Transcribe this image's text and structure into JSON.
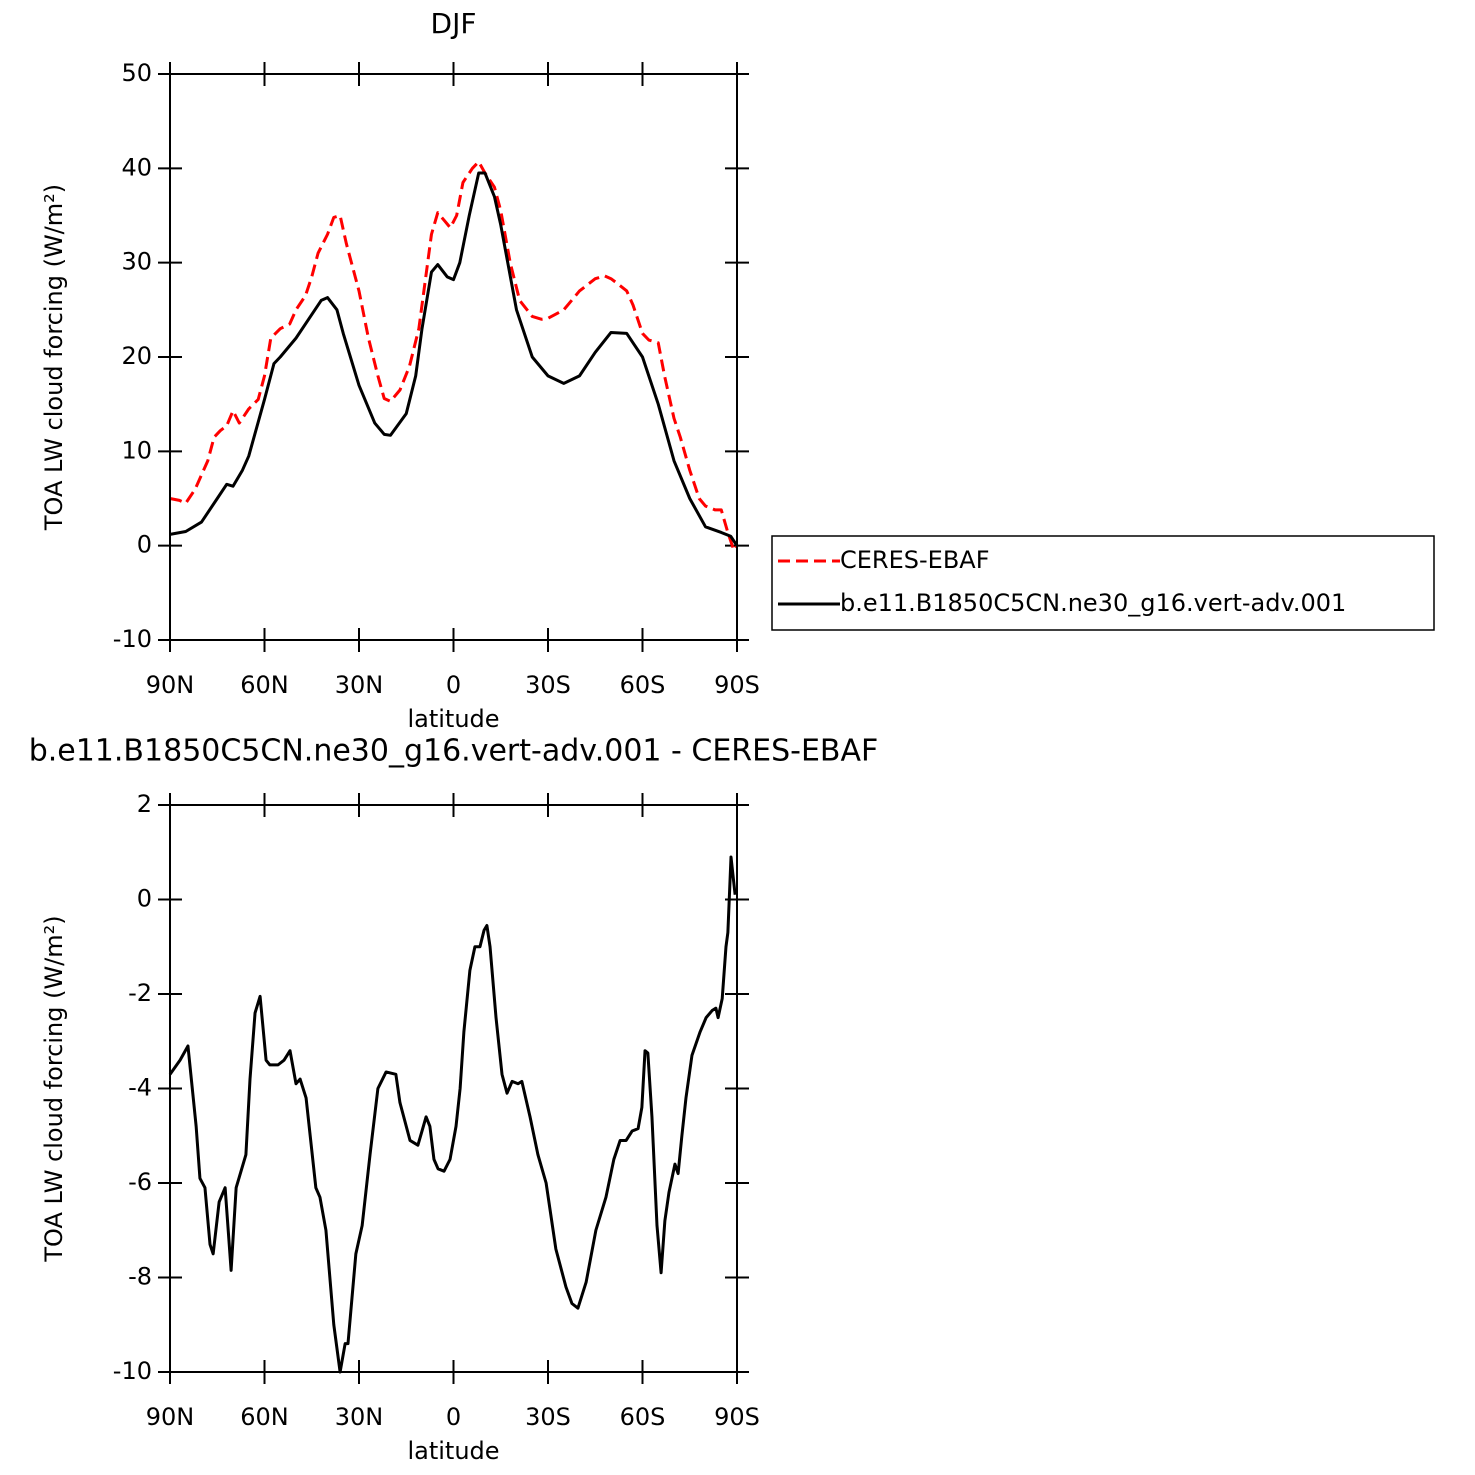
{
  "chart_data": [
    {
      "type": "line",
      "title": "DJF",
      "xlabel": "latitude",
      "ylabel": "TOA LW cloud forcing (W/m²)",
      "xlim": [
        90,
        -90
      ],
      "ylim": [
        -10,
        50
      ],
      "xticks": [
        {
          "value": 90,
          "label": "90N"
        },
        {
          "value": 60,
          "label": "60N"
        },
        {
          "value": 30,
          "label": "30N"
        },
        0,
        {
          "value": -30,
          "label": "30S"
        },
        {
          "value": -60,
          "label": "60S"
        },
        {
          "value": -90,
          "label": "90S"
        }
      ],
      "yticks": [
        -10,
        0,
        10,
        20,
        30,
        40,
        50
      ],
      "legend": "right",
      "series": [
        {
          "name": "CERES-EBAF",
          "color": "#ff0000",
          "line_style": "dashed",
          "x": [
            90,
            87,
            85,
            82,
            80,
            78,
            76,
            74,
            72,
            70,
            68,
            65,
            62,
            60,
            58,
            55,
            52,
            50,
            47,
            45,
            43,
            40,
            38,
            36,
            34,
            30,
            27,
            24,
            22,
            20,
            17,
            14,
            11,
            9,
            7,
            5,
            3,
            1,
            -1,
            -3,
            -6,
            -8,
            -10,
            -13,
            -15,
            -18,
            -21,
            -25,
            -28,
            -30,
            -35,
            -40,
            -45,
            -48,
            -50,
            -52,
            -55,
            -57,
            -60,
            -62,
            -65,
            -67,
            -70,
            -72,
            -75,
            -78,
            -80,
            -83,
            -85,
            -87,
            -88,
            -89,
            -90
          ],
          "values": [
            5,
            4.8,
            4.5,
            6,
            7.5,
            9,
            11.5,
            12.2,
            12.7,
            14.3,
            13,
            14.5,
            15.5,
            18,
            22,
            23,
            23.5,
            25,
            26.5,
            28.5,
            31,
            33,
            34.8,
            35,
            32,
            27,
            22,
            18,
            15.6,
            15.3,
            16.5,
            19,
            23,
            28,
            33,
            35.3,
            34.5,
            33.7,
            35,
            38.5,
            40,
            40.7,
            39.5,
            38,
            35.5,
            30,
            26,
            24.3,
            24,
            24.1,
            25,
            27,
            28.3,
            28.6,
            28.3,
            27.8,
            27,
            25.5,
            22.5,
            21.8,
            21.5,
            18,
            13.5,
            11.5,
            8,
            5,
            4.2,
            3.8,
            3.8,
            1.5,
            0.5,
            -0.5,
            0
          ]
        },
        {
          "name": "b.e11.B1850C5CN.ne30_g16.vert-adv.001",
          "color": "#000000",
          "line_style": "solid",
          "x": [
            90,
            85,
            80,
            75,
            72,
            70,
            67,
            65,
            60,
            57,
            55,
            50,
            45,
            42,
            40,
            37,
            35,
            30,
            25,
            22,
            20,
            15,
            12,
            10,
            7,
            5,
            2,
            0,
            -2,
            -5,
            -8,
            -10,
            -13,
            -15,
            -20,
            -25,
            -30,
            -35,
            -40,
            -45,
            -50,
            -55,
            -60,
            -65,
            -70,
            -75,
            -80,
            -85,
            -88,
            -90
          ],
          "values": [
            1.2,
            1.5,
            2.5,
            5,
            6.5,
            6.3,
            8,
            9.5,
            15.5,
            19.3,
            20,
            22,
            24.5,
            26,
            26.3,
            25,
            22.5,
            17,
            13,
            11.8,
            11.7,
            14,
            18,
            23,
            29,
            29.8,
            28.5,
            28.2,
            30,
            35,
            39.5,
            39.5,
            37,
            34,
            25,
            20,
            18,
            17.2,
            18,
            20.5,
            22.6,
            22.5,
            20,
            15,
            9,
            5,
            2,
            1.4,
            1,
            0
          ]
        }
      ]
    },
    {
      "type": "line",
      "title": "b.e11.B1850C5CN.ne30_g16.vert-adv.001 - CERES-EBAF",
      "xlabel": "latitude",
      "ylabel": "TOA LW cloud forcing (W/m²)",
      "xlim": [
        90,
        -90
      ],
      "ylim": [
        -10,
        2
      ],
      "xticks": [
        {
          "value": 90,
          "label": "90N"
        },
        {
          "value": 60,
          "label": "60N"
        },
        {
          "value": 30,
          "label": "30N"
        },
        0,
        {
          "value": -30,
          "label": "30S"
        },
        {
          "value": -60,
          "label": "60S"
        },
        {
          "value": -90,
          "label": "90S"
        }
      ],
      "yticks": [
        -10,
        -8,
        -6,
        -4,
        -2,
        0,
        2
      ],
      "series": [
        {
          "color": "#000000",
          "line_style": "solid",
          "x": [
            90,
            86.8,
            84.3,
            81.7,
            80.5,
            78.9,
            77.3,
            76.3,
            74.4,
            72.5,
            70.6,
            69,
            65.9,
            64.6,
            63,
            61.4,
            59.5,
            58.3,
            55.7,
            53.8,
            51.9,
            50,
            48.7,
            46.8,
            43.7,
            42.4,
            40.5,
            38,
            36,
            34.4,
            33.5,
            31,
            29,
            26.5,
            24,
            21.4,
            18.3,
            17,
            13.8,
            11.3,
            10,
            8.7,
            7.5,
            6.2,
            4.9,
            3,
            1.1,
            -0.8,
            -2.1,
            -3.3,
            -5.2,
            -6.8,
            -8.4,
            -9.7,
            -10.6,
            -11.6,
            -13.5,
            -15.4,
            -17,
            -18.6,
            -20.5,
            -21.7,
            -24.3,
            -26.8,
            -29.4,
            -32.5,
            -35.7,
            -37.6,
            -39.5,
            -42.1,
            -45.2,
            -48.4,
            -50.9,
            -52.9,
            -54.8,
            -56.7,
            -58.6,
            -59.8,
            -60.8,
            -61.7,
            -63,
            -64.6,
            -65.9,
            -67.1,
            -68.4,
            -70.3,
            -71.3,
            -72.5,
            -73.8,
            -75.7,
            -78.3,
            -80.2,
            -82.1,
            -83.3,
            -84,
            -85.3,
            -86.5,
            -87.1,
            -88.1,
            -89.4
          ],
          "values": [
            -3.7,
            -3.4,
            -3.1,
            -4.8,
            -5.9,
            -6.1,
            -7.3,
            -7.5,
            -6.4,
            -6.1,
            -7.85,
            -6.1,
            -5.4,
            -3.8,
            -2.4,
            -2.05,
            -3.4,
            -3.5,
            -3.5,
            -3.4,
            -3.2,
            -3.9,
            -3.8,
            -4.2,
            -6.1,
            -6.3,
            -7,
            -9,
            -10,
            -9.4,
            -9.4,
            -7.5,
            -6.9,
            -5.4,
            -4,
            -3.65,
            -3.7,
            -4.3,
            -5.1,
            -5.2,
            -4.9,
            -4.6,
            -4.8,
            -5.5,
            -5.7,
            -5.75,
            -5.5,
            -4.8,
            -4,
            -2.8,
            -1.5,
            -1,
            -1,
            -0.65,
            -0.55,
            -1,
            -2.5,
            -3.7,
            -4.1,
            -3.85,
            -3.9,
            -3.85,
            -4.6,
            -5.4,
            -6,
            -7.4,
            -8.2,
            -8.55,
            -8.65,
            -8.1,
            -7,
            -6.3,
            -5.5,
            -5.1,
            -5.1,
            -4.9,
            -4.85,
            -4.4,
            -3.2,
            -3.25,
            -4.6,
            -6.9,
            -7.9,
            -6.8,
            -6.2,
            -5.6,
            -5.8,
            -5,
            -4.2,
            -3.3,
            -2.8,
            -2.5,
            -2.35,
            -2.3,
            -2.5,
            -2.1,
            -1,
            -0.7,
            0.9,
            0.1
          ]
        }
      ]
    }
  ]
}
